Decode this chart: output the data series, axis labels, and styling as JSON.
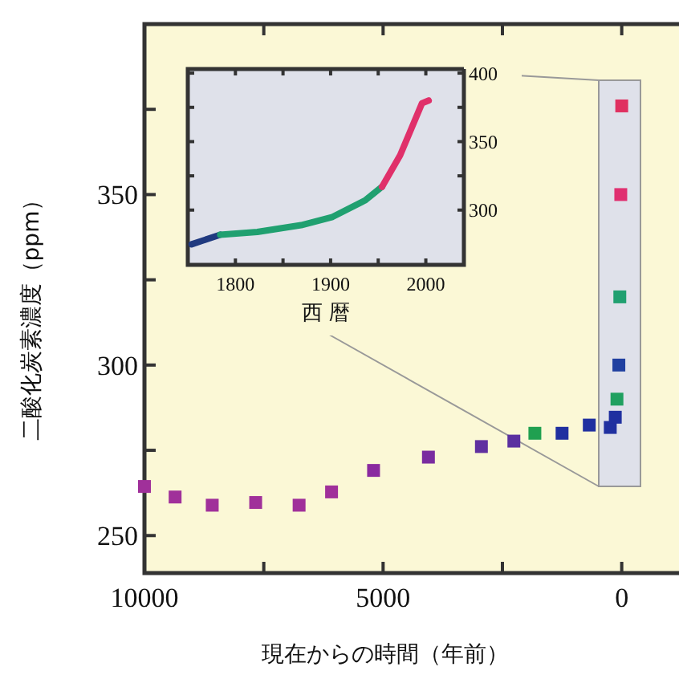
{
  "chart_data": [
    {
      "type": "scatter",
      "xlabel": "現在からの時間（年前）",
      "ylabel": "二酸化炭素濃度（ppm）",
      "marker": "square",
      "x": [
        10000,
        9358,
        8580,
        7670,
        6760,
        6080,
        5200,
        4050,
        2940,
        2260,
        1820,
        1250,
        680,
        240,
        135,
        100,
        60,
        40,
        20,
        0
      ],
      "values": [
        264.4,
        261.3,
        258.9,
        259.7,
        258.9,
        262.8,
        269.1,
        273,
        276.1,
        277.7,
        280,
        280,
        282.4,
        281.7,
        284.7,
        290,
        300,
        320,
        350,
        376
      ],
      "colors": [
        "#a0309a",
        "#a0309a",
        "#a0309a",
        "#a0309a",
        "#a0309a",
        "#a0309a",
        "#8a2aa0",
        "#7a2ca0",
        "#6030a0",
        "#5a30a0",
        "#20a050",
        "#2030a0",
        "#2030a0",
        "#2030a0",
        "#2030a0",
        "#20a060",
        "#2040a0",
        "#20a070",
        "#e03070",
        "#e03060"
      ],
      "xlim": [
        10000,
        -1200
      ],
      "ylim": [
        239,
        400
      ],
      "xticks": [
        10000,
        {
          "value": 7500,
          "label": null
        },
        5000,
        {
          "value": 2500,
          "label": null
        },
        0
      ],
      "yticks": [
        250,
        {
          "value": 275,
          "label": null
        },
        300,
        {
          "value": 325,
          "label": null
        },
        350,
        {
          "value": 375,
          "label": null
        }
      ]
    },
    {
      "type": "line",
      "xlabel": "西 暦",
      "series": [
        {
          "color": "#203a80",
          "x": [
            1754,
            1784
          ],
          "values": [
            275,
            282
          ]
        },
        {
          "color": "#20a070",
          "x": [
            1784,
            1823,
            1869,
            1902,
            1936,
            1954
          ],
          "values": [
            282,
            284,
            289,
            295,
            307,
            317
          ]
        },
        {
          "color": "#e0306a",
          "x": [
            1954,
            1973,
            1996,
            2003
          ],
          "values": [
            317,
            340,
            378,
            380
          ]
        }
      ],
      "xlim": [
        1750,
        2040
      ],
      "ylim": [
        260,
        403
      ],
      "xticks": [
        1800,
        {
          "value": 1850,
          "label": null
        },
        1900,
        {
          "value": 1950,
          "label": null
        },
        2000
      ],
      "yticks": [
        300,
        {
          "value": 325,
          "label": null
        },
        350,
        {
          "value": 375,
          "label": null
        },
        400
      ]
    }
  ]
}
